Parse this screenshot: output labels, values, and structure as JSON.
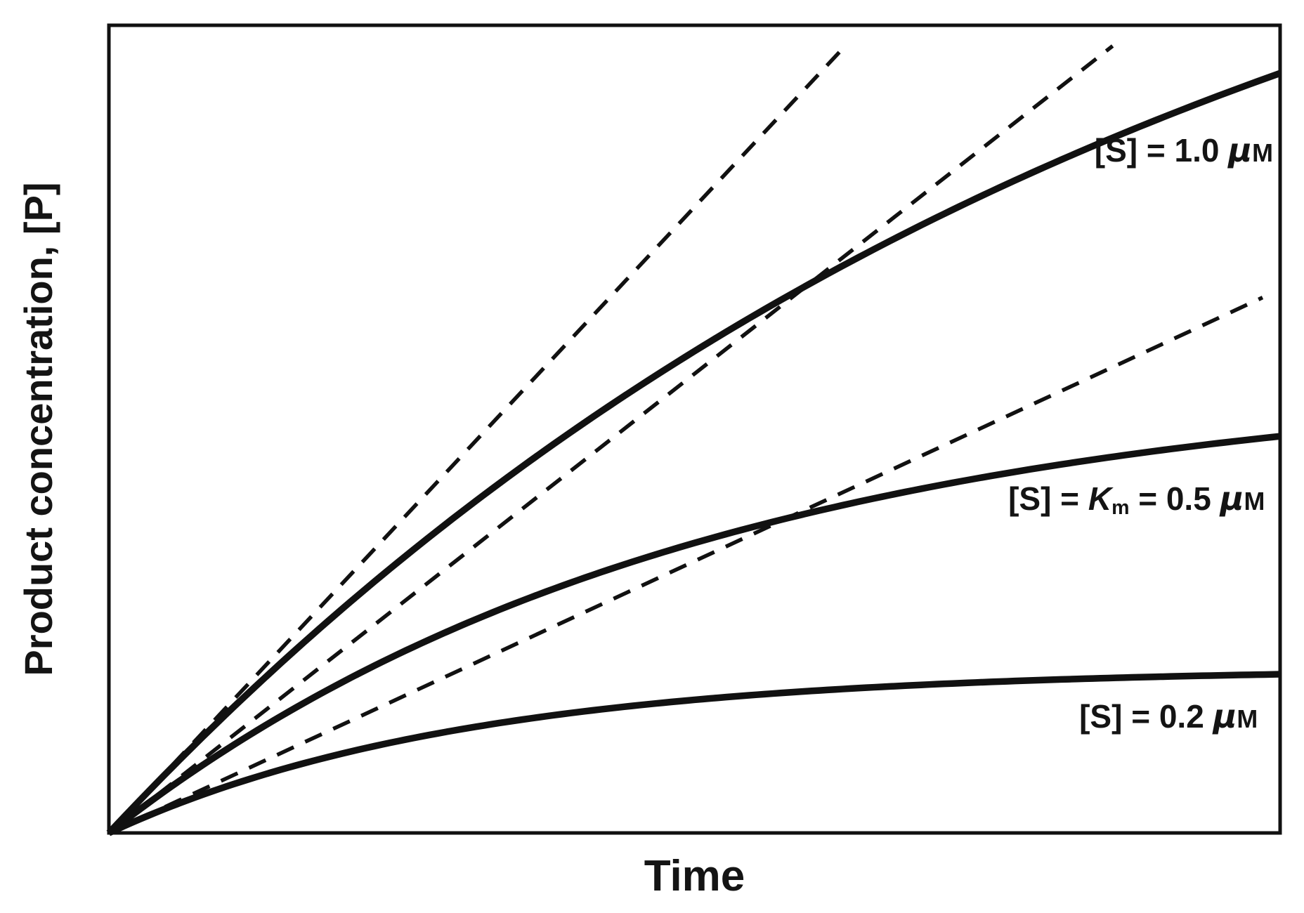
{
  "figure": {
    "background": "#ffffff",
    "ink": "#111111",
    "description_visible_text_only": true
  },
  "chart_data": {
    "type": "line",
    "title": "",
    "xlabel": "Time",
    "ylabel": "Product concentration, [P]",
    "x_range_norm": [
      0,
      1
    ],
    "y_range_norm": [
      0,
      1
    ],
    "grid": false,
    "ticks": "none",
    "frame": true,
    "legend_position": "inline-annotations",
    "x": [
      0,
      0.05,
      0.1,
      0.15,
      0.2,
      0.25,
      0.3,
      0.35,
      0.4,
      0.45,
      0.5,
      0.55,
      0.6,
      0.65,
      0.7,
      0.75,
      0.8,
      0.85,
      0.9,
      0.95,
      1.0
    ],
    "series": [
      {
        "id": "s-1.0uM",
        "name": "Progress curve at [S] = 1.0 uM",
        "line_style": "solid",
        "model": {
          "A": 1.41,
          "k": 1.1
        },
        "initial_velocity_slope": 1.55,
        "y": [
          0,
          0.0755,
          0.1468,
          0.2145,
          0.2785,
          0.339,
          0.3964,
          0.4505,
          0.502,
          0.5505,
          0.5966,
          0.64,
          0.6812,
          0.7202,
          0.7572,
          0.7921,
          0.8251,
          0.8564,
          0.886,
          0.9141,
          0.9406
        ],
        "label": {
          "plain": "[S] = 1.0 μM",
          "pre": "[S] = 1.0 ",
          "mu": "μ",
          "molar": "M",
          "anchor_norm": {
            "x": 0.994,
            "y": 0.845
          }
        }
      },
      {
        "id": "s-Km-0.5uM",
        "name": "Progress curve at [S] = Km = 0.5 uM",
        "line_style": "solid",
        "model": {
          "A": 0.568,
          "k": 2.0
        },
        "initial_velocity_slope": 1.137,
        "y": [
          0,
          0.0541,
          0.103,
          0.1472,
          0.1873,
          0.2235,
          0.2563,
          0.2859,
          0.3128,
          0.3371,
          0.359,
          0.3789,
          0.3969,
          0.4132,
          0.4279,
          0.4413,
          0.4533,
          0.4642,
          0.4741,
          0.483,
          0.4912
        ],
        "label": {
          "plain": "[S] = Km = 0.5 μM",
          "pre": "[S] = ",
          "km_symbol": "K",
          "km_sub": "m",
          "mid": " = 0.5 ",
          "mu": "μ",
          "molar": "M",
          "anchor_norm": {
            "x": 0.987,
            "y": 0.414
          }
        }
      },
      {
        "id": "s-0.2uM",
        "name": "Progress curve at [S] = 0.2 uM",
        "line_style": "solid",
        "model": {
          "A": 0.204,
          "k": 3.3
        },
        "initial_velocity_slope": 0.673,
        "y": [
          0,
          0.031,
          0.0573,
          0.0796,
          0.0986,
          0.1146,
          0.1282,
          0.1397,
          0.1495,
          0.1578,
          0.1648,
          0.1708,
          0.1758,
          0.1801,
          0.1837,
          0.1868,
          0.1894,
          0.1917,
          0.1935,
          0.1951,
          0.1965
        ],
        "label": {
          "plain": "[S] = 0.2 μM",
          "pre": "[S] = 0.2 ",
          "mu": "μ",
          "molar": "M",
          "anchor_norm": {
            "x": 0.981,
            "y": 0.144
          }
        }
      }
    ],
    "tangent_lines": [
      {
        "for": "[S] = 1.0 μM",
        "line_style": "dashed",
        "slope": 1.55,
        "x_end": 0.629
      },
      {
        "for": "[S] = Km = 0.5 μM",
        "line_style": "dashed",
        "slope": 1.137,
        "x_end": 0.857
      },
      {
        "for": "[S] = 0.2 μM",
        "line_style": "dashed",
        "slope": 0.673,
        "x_end": 0.985
      }
    ]
  }
}
